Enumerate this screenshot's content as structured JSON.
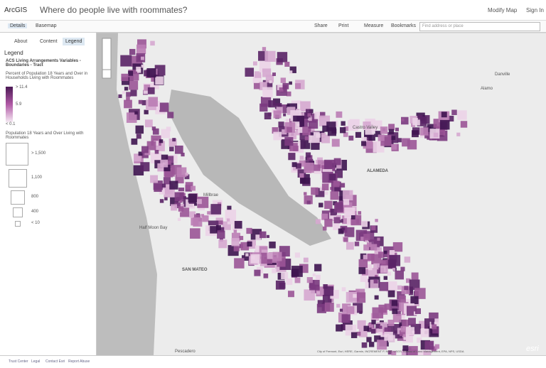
{
  "header": {
    "app": "ArcGIS",
    "title": "Where do people live with roommates?",
    "modify": "Modify Map",
    "sign_in": "Sign In"
  },
  "toolbar": {
    "details": "Details",
    "basemap": "Basemap",
    "share": "Share",
    "print": "Print",
    "measure": "Measure",
    "bookmarks": "Bookmarks",
    "search_placeholder": "Find address or place"
  },
  "panel": {
    "tabs": [
      "About",
      "Content",
      "Legend"
    ],
    "heading": "Legend",
    "layer": "ACS Living Arrangements Variables - Boundaries - Tract",
    "color_title": "Percent of Population 18 Years and Over in Households Living with Roommates",
    "color_labels": [
      "> 11.4",
      "5.9",
      "< 0.1"
    ],
    "size_title": "Population 18 Years and Over Living with Roommates",
    "size_labels": [
      "> 1,500",
      "1,100",
      "800",
      "400",
      "< 10"
    ]
  },
  "map": {
    "labels": [
      "ALAMEDA",
      "SAN MATEO",
      "Half Moon Bay",
      "Pescadero",
      "Millbrae",
      "Danville",
      "Castro Valley",
      "Alamo"
    ],
    "logo": "esri",
    "attribution": "City of Fremont, Esri, HERE, Garmin, INCREMENT P, NGA, USGS, Bureau of Land Management, EPA, NPS, USDA"
  },
  "footer": [
    "Trust Center",
    "Legal",
    "Contact Esri",
    "Report Abuse"
  ]
}
